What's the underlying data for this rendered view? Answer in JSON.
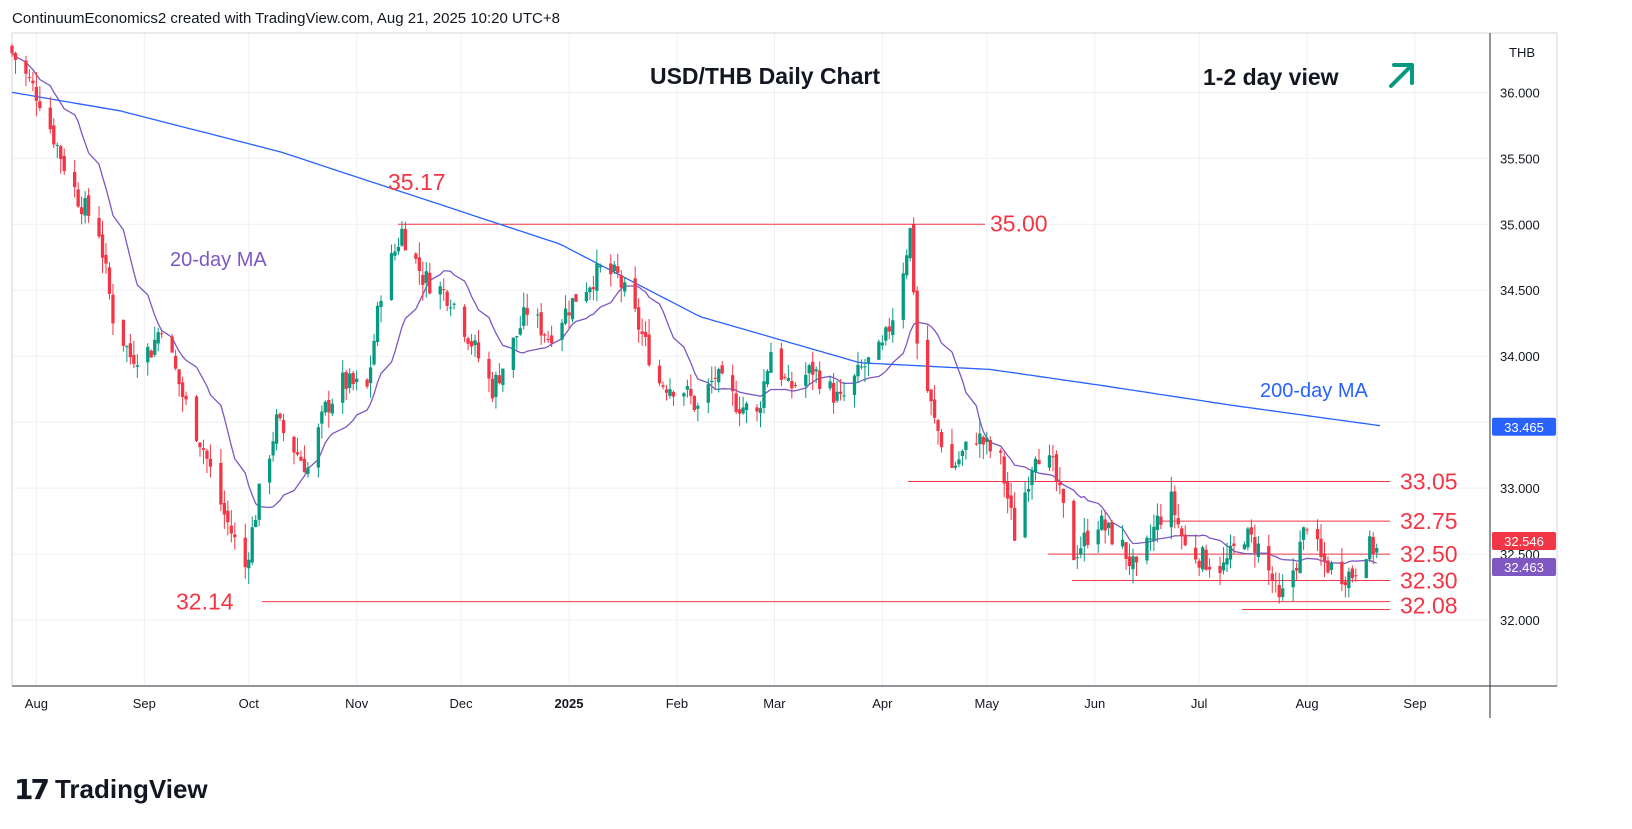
{
  "header": {
    "text": "ContinuumEconomics2 created with TradingView.com, Aug 21, 2025 10:20 UTC+8"
  },
  "branding": {
    "logo_text": "TradingView",
    "logo_mark": "17"
  },
  "chart_data": {
    "type": "candlestick",
    "title": "USD/THB Daily Chart",
    "view_label": "1-2 day view",
    "view_direction": "up",
    "currency": "THB",
    "ylim": [
      31.5,
      36.45
    ],
    "y_ticks": [
      "36.000",
      "35.500",
      "35.000",
      "34.500",
      "34.000",
      "33.500",
      "33.000",
      "32.500",
      "32.000"
    ],
    "x_ticks": [
      {
        "label": "Aug",
        "bold": false
      },
      {
        "label": "Sep",
        "bold": false
      },
      {
        "label": "Oct",
        "bold": false
      },
      {
        "label": "Nov",
        "bold": false
      },
      {
        "label": "Dec",
        "bold": false
      },
      {
        "label": "2025",
        "bold": true
      },
      {
        "label": "Feb",
        "bold": false
      },
      {
        "label": "Mar",
        "bold": false
      },
      {
        "label": "Apr",
        "bold": false
      },
      {
        "label": "May",
        "bold": false
      },
      {
        "label": "Jun",
        "bold": false
      },
      {
        "label": "Jul",
        "bold": false
      },
      {
        "label": "Aug",
        "bold": false
      },
      {
        "label": "Sep",
        "bold": false
      }
    ],
    "moving_averages": [
      {
        "name": "20-day MA",
        "color": "#7e57c2"
      },
      {
        "name": "200-day MA",
        "color": "#2962ff"
      }
    ],
    "levels": [
      {
        "label": "35.17",
        "value": 35.17,
        "kind": "high"
      },
      {
        "label": "35.00",
        "value": 35.0,
        "kind": "resistance"
      },
      {
        "label": "33.05",
        "value": 33.05,
        "kind": "resistance"
      },
      {
        "label": "32.75",
        "value": 32.75,
        "kind": "resistance"
      },
      {
        "label": "32.50",
        "value": 32.5,
        "kind": "support"
      },
      {
        "label": "32.30",
        "value": 32.3,
        "kind": "support"
      },
      {
        "label": "32.14",
        "value": 32.14,
        "kind": "low"
      },
      {
        "label": "32.08",
        "value": 32.08,
        "kind": "support"
      }
    ],
    "price_badges": [
      {
        "label": "33.465",
        "color": "#2962ff"
      },
      {
        "label": "32.546",
        "color": "#f23645"
      },
      {
        "label": "32.463",
        "color": "#7e57c2"
      }
    ],
    "close_path": [
      {
        "date": "2024-07-25",
        "close": 36.3
      },
      {
        "date": "2024-08-02",
        "close": 35.95
      },
      {
        "date": "2024-08-09",
        "close": 35.45
      },
      {
        "date": "2024-08-13",
        "close": 35.2
      },
      {
        "date": "2024-08-19",
        "close": 34.95
      },
      {
        "date": "2024-08-23",
        "close": 34.3
      },
      {
        "date": "2024-08-28",
        "close": 34.0
      },
      {
        "date": "2024-09-03",
        "close": 34.05
      },
      {
        "date": "2024-09-06",
        "close": 34.25
      },
      {
        "date": "2024-09-12",
        "close": 33.7
      },
      {
        "date": "2024-09-18",
        "close": 33.3
      },
      {
        "date": "2024-09-24",
        "close": 32.8
      },
      {
        "date": "2024-09-30",
        "close": 32.4
      },
      {
        "date": "2024-10-04",
        "close": 32.95
      },
      {
        "date": "2024-10-09",
        "close": 33.5
      },
      {
        "date": "2024-10-14",
        "close": 33.3
      },
      {
        "date": "2024-10-18",
        "close": 33.15
      },
      {
        "date": "2024-10-23",
        "close": 33.6
      },
      {
        "date": "2024-10-28",
        "close": 33.8
      },
      {
        "date": "2024-11-04",
        "close": 33.75
      },
      {
        "date": "2024-11-08",
        "close": 34.5
      },
      {
        "date": "2024-11-14",
        "close": 34.95
      },
      {
        "date": "2024-11-20",
        "close": 34.6
      },
      {
        "date": "2024-11-28",
        "close": 34.45
      },
      {
        "date": "2024-12-05",
        "close": 34.05
      },
      {
        "date": "2024-12-10",
        "close": 33.75
      },
      {
        "date": "2024-12-16",
        "close": 34.1
      },
      {
        "date": "2024-12-20",
        "close": 34.35
      },
      {
        "date": "2024-12-26",
        "close": 34.15
      },
      {
        "date": "2025-01-03",
        "close": 34.45
      },
      {
        "date": "2025-01-10",
        "close": 34.65
      },
      {
        "date": "2025-01-15",
        "close": 34.6
      },
      {
        "date": "2025-01-20",
        "close": 34.3
      },
      {
        "date": "2025-01-27",
        "close": 33.8
      },
      {
        "date": "2025-02-03",
        "close": 33.75
      },
      {
        "date": "2025-02-07",
        "close": 33.6
      },
      {
        "date": "2025-02-12",
        "close": 33.85
      },
      {
        "date": "2025-02-18",
        "close": 33.65
      },
      {
        "date": "2025-02-24",
        "close": 33.55
      },
      {
        "date": "2025-02-28",
        "close": 34.05
      },
      {
        "date": "2025-03-05",
        "close": 33.75
      },
      {
        "date": "2025-03-12",
        "close": 33.9
      },
      {
        "date": "2025-03-20",
        "close": 33.65
      },
      {
        "date": "2025-03-26",
        "close": 33.9
      },
      {
        "date": "2025-04-01",
        "close": 34.05
      },
      {
        "date": "2025-04-05",
        "close": 34.4
      },
      {
        "date": "2025-04-09",
        "close": 34.95
      },
      {
        "date": "2025-04-11",
        "close": 34.1
      },
      {
        "date": "2025-04-16",
        "close": 33.5
      },
      {
        "date": "2025-04-21",
        "close": 33.15
      },
      {
        "date": "2025-04-28",
        "close": 33.4
      },
      {
        "date": "2025-05-05",
        "close": 33.2
      },
      {
        "date": "2025-05-09",
        "close": 32.65
      },
      {
        "date": "2025-05-15",
        "close": 33.3
      },
      {
        "date": "2025-05-20",
        "close": 33.15
      },
      {
        "date": "2025-05-26",
        "close": 32.5
      },
      {
        "date": "2025-06-02",
        "close": 32.75
      },
      {
        "date": "2025-06-09",
        "close": 32.55
      },
      {
        "date": "2025-06-13",
        "close": 32.35
      },
      {
        "date": "2025-06-19",
        "close": 32.75
      },
      {
        "date": "2025-06-23",
        "close": 32.9
      },
      {
        "date": "2025-06-27",
        "close": 32.55
      },
      {
        "date": "2025-07-03",
        "close": 32.45
      },
      {
        "date": "2025-07-08",
        "close": 32.4
      },
      {
        "date": "2025-07-14",
        "close": 32.65
      },
      {
        "date": "2025-07-18",
        "close": 32.55
      },
      {
        "date": "2025-07-22",
        "close": 32.3
      },
      {
        "date": "2025-07-24",
        "close": 32.12
      },
      {
        "date": "2025-07-29",
        "close": 32.45
      },
      {
        "date": "2025-08-01",
        "close": 32.75
      },
      {
        "date": "2025-08-05",
        "close": 32.45
      },
      {
        "date": "2025-08-11",
        "close": 32.35
      },
      {
        "date": "2025-08-14",
        "close": 32.35
      },
      {
        "date": "2025-08-18",
        "close": 32.55
      },
      {
        "date": "2025-08-21",
        "close": 32.546
      }
    ]
  }
}
